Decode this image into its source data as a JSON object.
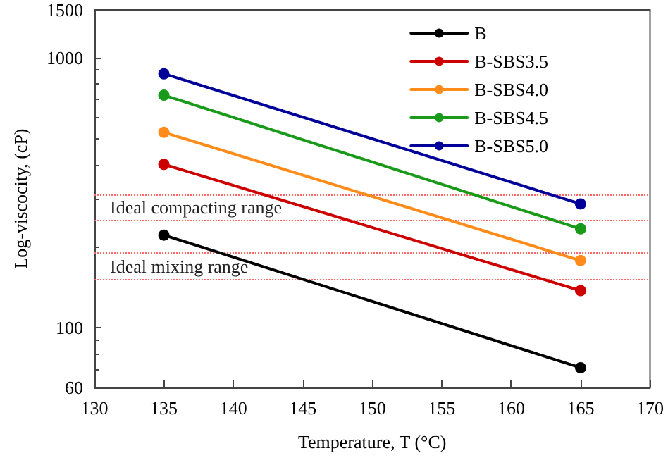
{
  "chart_data": {
    "type": "line",
    "xlabel": "Temperature, T (°C)",
    "ylabel": "Log-viscocity, (cP)",
    "x": [
      135,
      165
    ],
    "series": [
      {
        "name": "B",
        "color": "#000000",
        "values": [
          220,
          71
        ]
      },
      {
        "name": "B-SBS3.5",
        "color": "#cc0000",
        "values": [
          402,
          137
        ]
      },
      {
        "name": "B-SBS4.0",
        "color": "#ff8c1a",
        "values": [
          528,
          177
        ]
      },
      {
        "name": "B-SBS4.5",
        "color": "#1a9a1a",
        "values": [
          725,
          232
        ]
      },
      {
        "name": "B-SBS5.0",
        "color": "#000099",
        "values": [
          870,
          287
        ]
      }
    ],
    "xlim": [
      130,
      170
    ],
    "xticks": [
      130,
      135,
      140,
      145,
      150,
      155,
      160,
      165,
      170
    ],
    "ylim": [
      60,
      1500
    ],
    "yticks": [
      60,
      100,
      1000,
      1500
    ],
    "log": true,
    "ref_lines": [
      {
        "axis": "y",
        "value": 310,
        "color": "#ff6666",
        "line_style": "dotted"
      },
      {
        "axis": "y",
        "value": 250,
        "color": "#ff6666",
        "line_style": "dotted"
      },
      {
        "axis": "y",
        "value": 190,
        "color": "#ff6666",
        "line_style": "dotted"
      },
      {
        "axis": "y",
        "value": 150,
        "color": "#ff6666",
        "line_style": "dotted"
      }
    ],
    "annotations": [
      "Ideal compacting range",
      "Ideal mixing range"
    ],
    "grid": false,
    "legend": "top right",
    "marker": "circle",
    "line_style": "solid"
  }
}
